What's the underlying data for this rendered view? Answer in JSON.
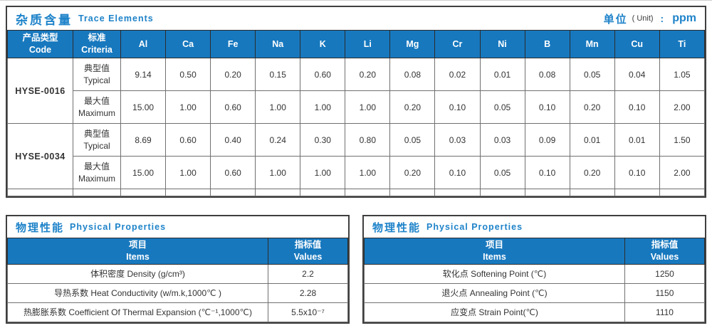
{
  "colors": {
    "header_blue": "#1778be",
    "title_blue": "#1e83c9",
    "outer_border": "#3f3f3f",
    "cell_border": "#707070",
    "body_text": "#333333"
  },
  "trace": {
    "title_zh": "杂质含量",
    "title_en": "Trace Elements",
    "unit_zh": "单位",
    "unit_paren": "( Unit)",
    "unit_colon": ":",
    "unit_value": "ppm",
    "col_code_zh": "产品类型",
    "col_code_en": "Code",
    "col_criteria_zh": "标准",
    "col_criteria_en": "Criteria",
    "elements": [
      "Al",
      "Ca",
      "Fe",
      "Na",
      "K",
      "Li",
      "Mg",
      "Cr",
      "Ni",
      "B",
      "Mn",
      "Cu",
      "Ti"
    ],
    "products": [
      {
        "code": "HYSE-0016",
        "rows": [
          {
            "label_zh": "典型值",
            "label_en": "Typical",
            "values": [
              "9.14",
              "0.50",
              "0.20",
              "0.15",
              "0.60",
              "0.20",
              "0.08",
              "0.02",
              "0.01",
              "0.08",
              "0.05",
              "0.04",
              "1.05"
            ]
          },
          {
            "label_zh": "最大值",
            "label_en": "Maximum",
            "values": [
              "15.00",
              "1.00",
              "0.60",
              "1.00",
              "1.00",
              "1.00",
              "0.20",
              "0.10",
              "0.05",
              "0.10",
              "0.20",
              "0.10",
              "2.00"
            ]
          }
        ]
      },
      {
        "code": "HYSE-0034",
        "rows": [
          {
            "label_zh": "典型值",
            "label_en": "Typical",
            "values": [
              "8.69",
              "0.60",
              "0.40",
              "0.24",
              "0.30",
              "0.80",
              "0.05",
              "0.03",
              "0.03",
              "0.09",
              "0.01",
              "0.01",
              "1.50"
            ]
          },
          {
            "label_zh": "最大值",
            "label_en": "Maximum",
            "values": [
              "15.00",
              "1.00",
              "0.60",
              "1.00",
              "1.00",
              "1.00",
              "0.20",
              "0.10",
              "0.05",
              "0.10",
              "0.20",
              "0.10",
              "2.00"
            ]
          }
        ]
      }
    ]
  },
  "physical_left": {
    "title_zh": "物理性能",
    "title_en": "Physical Properties",
    "col_items_zh": "项目",
    "col_items_en": "Items",
    "col_values_zh": "指标值",
    "col_values_en": "Values",
    "rows": [
      {
        "item": "体积密度 Density (g/cm³)",
        "value": "2.2"
      },
      {
        "item": "导热系数 Heat Conductivity (w/m.k,1000℃ )",
        "value": "2.28"
      },
      {
        "item": "热膨胀系数 Coefficient Of Thermal Expansion (℃⁻¹,1000℃)",
        "value": "5.5x10⁻⁷"
      }
    ]
  },
  "physical_right": {
    "title_zh": "物理性能",
    "title_en": "Physical Properties",
    "col_items_zh": "项目",
    "col_items_en": "Items",
    "col_values_zh": "指标值",
    "col_values_en": "Values",
    "rows": [
      {
        "item": "软化点 Softening Point (℃)",
        "value": "1250"
      },
      {
        "item": "退火点 Annealing Point (℃)",
        "value": "1150"
      },
      {
        "item": "应变点 Strain Point(℃)",
        "value": "1110"
      }
    ]
  }
}
